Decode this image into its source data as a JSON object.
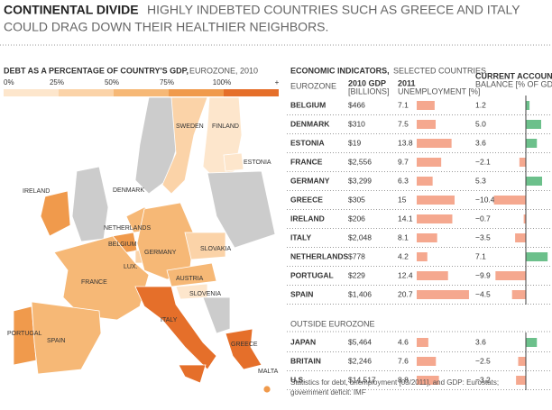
{
  "header": {
    "title": "CONTINENTAL DIVIDE",
    "subtitle": [
      "HIGHLY INDEBTED COUNTRIES SUCH AS GREECE AND ITALY",
      "COULD DRAG DOWN THEIR HEALTHIER NEIGHBORS."
    ]
  },
  "map": {
    "title": "DEBT AS A PERCENTAGE OF COUNTRY'S GDP,",
    "subtitle": "EUROZONE, 2010",
    "legend_labels": [
      "0%",
      "25%",
      "50%",
      "75%",
      "100%",
      "+"
    ],
    "legend_colors": [
      "#fde6cc",
      "#fbd3a8",
      "#f6b876",
      "#f09a4c",
      "#e56f2a"
    ],
    "labels": [
      "SWEDEN",
      "FINLAND",
      "ESTONIA",
      "IRELAND",
      "DENMARK",
      "NETHERLANDS",
      "BELGIUM",
      "GERMANY",
      "LUX.",
      "SLOVAKIA",
      "FRANCE",
      "AUSTRIA",
      "SLOVENIA",
      "PORTUGAL",
      "SPAIN",
      "ITALY",
      "GREECE",
      "MALTA"
    ]
  },
  "table": {
    "title": "ECONOMIC INDICATORS,",
    "subtitle": "SELECTED COUNTRIES",
    "columns": [
      {
        "name": "EUROZONE"
      },
      {
        "name": "2010 GDP",
        "unit": "[BILLIONS]"
      },
      {
        "name": "2011",
        "unit": "UNEMPLOYMENT [%]"
      },
      {
        "name": "CURRENT ACCOUNT",
        "unit": "BALANCE [% OF GDP]"
      }
    ],
    "unemployment_color": "#f5a88f",
    "positive_color": "#6cc08b",
    "negative_color": "#f5a88f",
    "groups": [
      {
        "rows": [
          {
            "country": "BELGIUM",
            "gdp": "$466",
            "unemployment": 7.1,
            "balance": 1.2
          },
          {
            "country": "DENMARK",
            "gdp": "$310",
            "unemployment": 7.5,
            "balance": 5.0,
            "balance_label": "5.0"
          },
          {
            "country": "ESTONIA",
            "gdp": "$19",
            "unemployment": 13.8,
            "balance": 3.6
          },
          {
            "country": "FRANCE",
            "gdp": "$2,556",
            "unemployment": 9.7,
            "balance": -2.1,
            "balance_label": "−2.1"
          },
          {
            "country": "GERMANY",
            "gdp": "$3,299",
            "unemployment": 6.3,
            "balance": 5.3
          },
          {
            "country": "GREECE",
            "gdp": "$305",
            "unemployment": 15,
            "balance": -10.4,
            "balance_label": "−10.4"
          },
          {
            "country": "IRELAND",
            "gdp": "$206",
            "unemployment": 14.1,
            "balance": -0.7,
            "balance_label": "−0.7"
          },
          {
            "country": "ITALY",
            "gdp": "$2,048",
            "unemployment": 8.1,
            "balance": -3.5,
            "balance_label": "−3.5"
          },
          {
            "country": "NETHERLANDS",
            "gdp": "$778",
            "unemployment": 4.2,
            "balance": 7.1
          },
          {
            "country": "PORTUGAL",
            "gdp": "$229",
            "unemployment": 12.4,
            "balance": -9.9,
            "balance_label": "−9.9"
          },
          {
            "country": "SPAIN",
            "gdp": "$1,406",
            "unemployment": 20.7,
            "balance": -4.5,
            "balance_label": "−4.5"
          }
        ]
      },
      {
        "name": "OUTSIDE EUROZONE",
        "rows": [
          {
            "country": "JAPAN",
            "gdp": "$5,464",
            "unemployment": 4.6,
            "balance": 3.6
          },
          {
            "country": "BRITAIN",
            "gdp": "$2,246",
            "unemployment": 7.6,
            "balance": -2.5,
            "balance_label": "−2.5"
          },
          {
            "country": "U.S.",
            "gdp": "$14,517",
            "unemployment": 8.8,
            "balance": -3.2,
            "balance_label": "−3.2"
          }
        ]
      }
    ]
  },
  "footnote": [
    "Statistics for debt, unemployment [03/2011], and GDP: Eurostats;",
    "government deficit: IMF"
  ]
}
